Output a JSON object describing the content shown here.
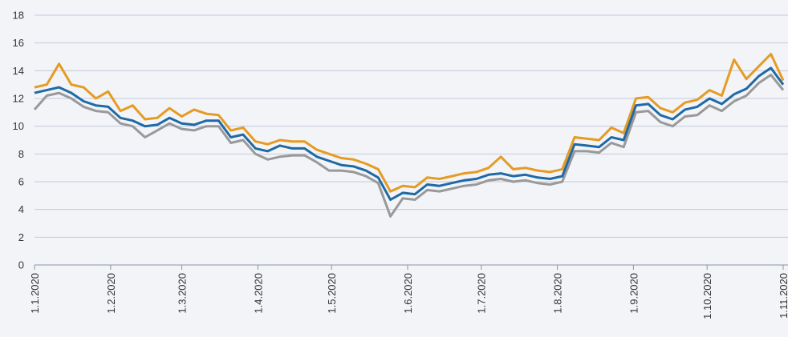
{
  "chart_data": {
    "type": "line",
    "x": [
      "1.1.2020",
      "6.1.2020",
      "11.1.2020",
      "16.1.2020",
      "21.1.2020",
      "26.1.2020",
      "31.1.2020",
      "5.2.2020",
      "10.2.2020",
      "15.2.2020",
      "20.2.2020",
      "25.2.2020",
      "1.3.2020",
      "6.3.2020",
      "11.3.2020",
      "16.3.2020",
      "21.3.2020",
      "26.3.2020",
      "31.3.2020",
      "5.4.2020",
      "10.4.2020",
      "15.4.2020",
      "20.4.2020",
      "25.4.2020",
      "30.4.2020",
      "5.5.2020",
      "10.5.2020",
      "15.5.2020",
      "20.5.2020",
      "25.5.2020",
      "30.5.2020",
      "4.6.2020",
      "9.6.2020",
      "14.6.2020",
      "19.6.2020",
      "24.6.2020",
      "29.6.2020",
      "4.7.2020",
      "9.7.2020",
      "14.7.2020",
      "19.7.2020",
      "24.7.2020",
      "29.7.2020",
      "3.8.2020",
      "8.8.2020",
      "13.8.2020",
      "18.8.2020",
      "23.8.2020",
      "28.8.2020",
      "2.9.2020",
      "7.9.2020",
      "12.9.2020",
      "17.9.2020",
      "22.9.2020",
      "27.9.2020",
      "2.10.2020",
      "7.10.2020",
      "12.10.2020",
      "17.10.2020",
      "22.10.2020",
      "27.10.2020",
      "1.11.2020"
    ],
    "series": [
      {
        "color": "#e69b22",
        "values": [
          12.8,
          13.0,
          14.5,
          13.0,
          12.8,
          12.0,
          12.5,
          11.1,
          11.5,
          10.5,
          10.6,
          11.3,
          10.7,
          11.2,
          10.9,
          10.8,
          9.7,
          9.9,
          8.9,
          8.7,
          9.0,
          8.9,
          8.9,
          8.3,
          8.0,
          7.7,
          7.6,
          7.3,
          6.9,
          5.3,
          5.7,
          5.6,
          6.3,
          6.2,
          6.4,
          6.6,
          6.7,
          7.0,
          7.8,
          6.9,
          7.0,
          6.8,
          6.7,
          6.9,
          9.2,
          9.1,
          9.0,
          9.9,
          9.5,
          12.0,
          12.1,
          11.3,
          11.0,
          11.7,
          11.9,
          12.6,
          12.2,
          14.8,
          13.4,
          14.3,
          15.2,
          13.3
        ]
      },
      {
        "color": "#1f6aa5",
        "values": [
          12.4,
          12.6,
          12.8,
          12.4,
          11.8,
          11.5,
          11.4,
          10.6,
          10.4,
          10.0,
          10.1,
          10.6,
          10.2,
          10.1,
          10.4,
          10.4,
          9.2,
          9.4,
          8.4,
          8.2,
          8.6,
          8.4,
          8.4,
          7.8,
          7.5,
          7.2,
          7.1,
          6.8,
          6.3,
          4.7,
          5.2,
          5.1,
          5.8,
          5.7,
          5.9,
          6.1,
          6.2,
          6.5,
          6.6,
          6.4,
          6.5,
          6.3,
          6.2,
          6.4,
          8.7,
          8.6,
          8.5,
          9.2,
          9.0,
          11.5,
          11.6,
          10.8,
          10.5,
          11.2,
          11.4,
          12.0,
          11.6,
          12.3,
          12.7,
          13.6,
          14.2,
          13.0
        ]
      },
      {
        "color": "#999999",
        "values": [
          11.2,
          12.2,
          12.4,
          12.0,
          11.4,
          11.1,
          11.0,
          10.2,
          10.0,
          9.2,
          9.7,
          10.2,
          9.8,
          9.7,
          10.0,
          10.0,
          8.8,
          9.0,
          8.0,
          7.6,
          7.8,
          7.9,
          7.9,
          7.4,
          6.8,
          6.8,
          6.7,
          6.4,
          5.9,
          3.5,
          4.8,
          4.7,
          5.4,
          5.3,
          5.5,
          5.7,
          5.8,
          6.1,
          6.2,
          6.0,
          6.1,
          5.9,
          5.8,
          6.0,
          8.2,
          8.2,
          8.1,
          8.8,
          8.5,
          11.0,
          11.1,
          10.3,
          10.0,
          10.7,
          10.8,
          11.5,
          11.1,
          11.8,
          12.2,
          13.1,
          13.7,
          12.6
        ]
      }
    ],
    "xlim": [
      "1.1.2020",
      "1.11.2020"
    ],
    "xticks": [
      "1.1.2020",
      "1.2.2020",
      "1.3.2020",
      "1.4.2020",
      "1.5.2020",
      "1.6.2020",
      "1.7.2020",
      "1.8.2020",
      "1.9.2020",
      "1.10.2020",
      "1.11.2020"
    ],
    "ylim": [
      0,
      18
    ],
    "yticks": [
      0,
      2,
      4,
      6,
      8,
      10,
      12,
      14,
      16,
      18
    ],
    "grid": true
  }
}
